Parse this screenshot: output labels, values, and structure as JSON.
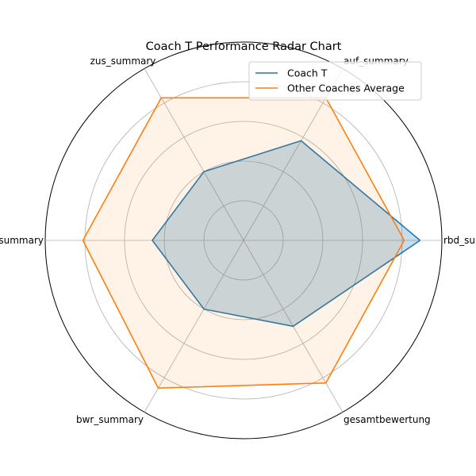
{
  "chart_data": {
    "type": "radar",
    "title": "Coach T Performance Radar Chart",
    "categories": [
      "rbd_summary",
      "auf_summary",
      "zus_summary",
      "erg_summary",
      "bwr_summary",
      "gesamtbewertung"
    ],
    "rlim": [
      0,
      1
    ],
    "grid": true,
    "grid_levels": [
      0.2,
      0.4,
      0.6,
      0.8,
      1.0
    ],
    "legend_position": "top-right",
    "series": [
      {
        "name": "Coach T",
        "color": "#1f77b4",
        "fill_color": "#1f77b4",
        "values": [
          0.89,
          0.58,
          0.4,
          0.46,
          0.4,
          0.5
        ]
      },
      {
        "name": "Other Coaches Average",
        "color": "#ff7f0e",
        "fill_color": "#ff7f0e",
        "values": [
          0.81,
          0.83,
          0.83,
          0.81,
          0.86,
          0.83
        ]
      }
    ]
  }
}
